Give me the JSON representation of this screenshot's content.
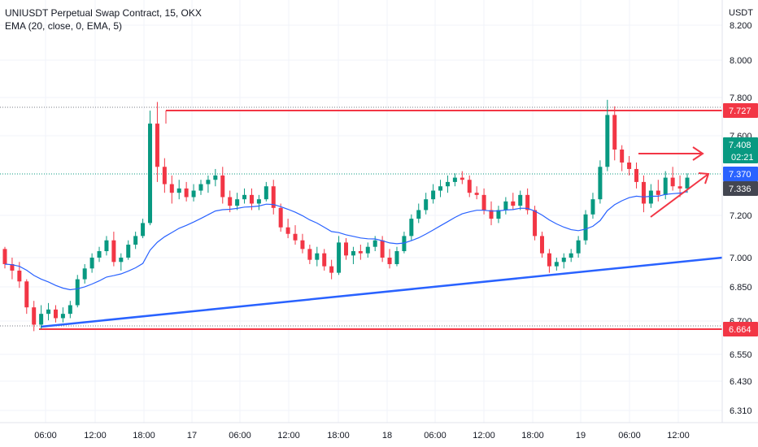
{
  "legend": {
    "symbol_line": "UNIUSDT Perpetual Swap Contract, 15, OKX",
    "indicator_line": "EMA (20, close, 0, EMA, 5)"
  },
  "axis": {
    "unit": "USDT"
  },
  "chart_data": {
    "type": "candlestick",
    "price_axis_ticks": [
      6.31,
      6.43,
      6.55,
      6.7,
      6.85,
      7.0,
      7.2,
      7.6,
      7.8,
      8.0,
      8.2
    ],
    "time_axis_ticks": [
      "06:00",
      "12:00",
      "18:00",
      "17",
      "06:00",
      "12:00",
      "18:00",
      "18",
      "06:00",
      "12:00",
      "18:00",
      "19",
      "06:00",
      "12:00"
    ],
    "price_badges": [
      {
        "label": "7.727",
        "value": 7.727,
        "color": "#f23645"
      },
      {
        "label": "7.408",
        "value": 7.408,
        "color": "#089981",
        "sub": "02:21"
      },
      {
        "label": "7.370",
        "value": 7.37,
        "color": "#2962ff"
      },
      {
        "label": "7.336",
        "value": 7.336,
        "color": "#434651"
      },
      {
        "label": "6.664",
        "value": 6.664,
        "color": "#f23645"
      }
    ],
    "horizontal_levels": [
      {
        "value": 7.727,
        "color": "#f23645"
      },
      {
        "value": 6.664,
        "color": "#f23645"
      }
    ],
    "trendline": {
      "color": "#2962ff",
      "from": {
        "bar": 4,
        "price": 6.69
      },
      "to": {
        "bar": 96,
        "price": 7.0
      }
    },
    "triangle": {
      "color": "#f23645",
      "upper": {
        "start": 7.45,
        "end": 7.45
      },
      "lower": {
        "start": 7.21,
        "end": 7.43
      }
    },
    "ema_color": "#2962ff",
    "up_color": "#089981",
    "down_color": "#f23645",
    "candles": [
      [
        7.04,
        7.05,
        6.95,
        6.97
      ],
      [
        6.97,
        7.0,
        6.9,
        6.94
      ],
      [
        6.94,
        6.98,
        6.86,
        6.89
      ],
      [
        6.89,
        6.9,
        6.74,
        6.77
      ],
      [
        6.77,
        6.8,
        6.66,
        6.69
      ],
      [
        6.69,
        6.78,
        6.67,
        6.74
      ],
      [
        6.74,
        6.79,
        6.71,
        6.76
      ],
      [
        6.76,
        6.78,
        6.7,
        6.72
      ],
      [
        6.72,
        6.77,
        6.7,
        6.74
      ],
      [
        6.74,
        6.8,
        6.72,
        6.78
      ],
      [
        6.78,
        6.92,
        6.77,
        6.9
      ],
      [
        6.9,
        6.97,
        6.88,
        6.95
      ],
      [
        6.95,
        7.02,
        6.93,
        7.0
      ],
      [
        7.0,
        7.05,
        6.98,
        7.03
      ],
      [
        7.03,
        7.1,
        7.01,
        7.08
      ],
      [
        7.08,
        7.12,
        6.96,
        6.98
      ],
      [
        6.98,
        7.02,
        6.94,
        7.0
      ],
      [
        7.0,
        7.08,
        6.99,
        7.06
      ],
      [
        7.06,
        7.12,
        7.04,
        7.1
      ],
      [
        7.1,
        7.18,
        7.09,
        7.16
      ],
      [
        7.16,
        7.68,
        7.15,
        7.62
      ],
      [
        7.62,
        7.72,
        7.35,
        7.42
      ],
      [
        7.42,
        7.46,
        7.3,
        7.34
      ],
      [
        7.34,
        7.38,
        7.25,
        7.3
      ],
      [
        7.3,
        7.36,
        7.27,
        7.32
      ],
      [
        7.32,
        7.35,
        7.26,
        7.28
      ],
      [
        7.28,
        7.34,
        7.26,
        7.31
      ],
      [
        7.31,
        7.36,
        7.29,
        7.34
      ],
      [
        7.34,
        7.38,
        7.3,
        7.36
      ],
      [
        7.36,
        7.41,
        7.33,
        7.38
      ],
      [
        7.38,
        7.42,
        7.25,
        7.28
      ],
      [
        7.28,
        7.31,
        7.21,
        7.24
      ],
      [
        7.24,
        7.3,
        7.22,
        7.27
      ],
      [
        7.27,
        7.32,
        7.25,
        7.29
      ],
      [
        7.29,
        7.32,
        7.22,
        7.25
      ],
      [
        7.25,
        7.29,
        7.22,
        7.27
      ],
      [
        7.27,
        7.35,
        7.26,
        7.33
      ],
      [
        7.33,
        7.36,
        7.2,
        7.23
      ],
      [
        7.23,
        7.25,
        7.12,
        7.14
      ],
      [
        7.14,
        7.18,
        7.09,
        7.11
      ],
      [
        7.11,
        7.15,
        7.06,
        7.08
      ],
      [
        7.08,
        7.11,
        7.02,
        7.04
      ],
      [
        7.04,
        7.06,
        6.97,
        6.99
      ],
      [
        6.99,
        7.05,
        6.96,
        7.02
      ],
      [
        7.02,
        7.04,
        6.94,
        6.96
      ],
      [
        6.96,
        6.99,
        6.9,
        6.93
      ],
      [
        6.93,
        7.1,
        6.92,
        7.07
      ],
      [
        7.07,
        7.09,
        6.99,
        7.01
      ],
      [
        7.01,
        7.05,
        6.97,
        7.03
      ],
      [
        7.03,
        7.06,
        6.99,
        7.02
      ],
      [
        7.02,
        7.07,
        7.0,
        7.05
      ],
      [
        7.05,
        7.1,
        7.03,
        7.08
      ],
      [
        7.08,
        7.1,
        6.98,
        7.0
      ],
      [
        7.0,
        7.04,
        6.95,
        6.97
      ],
      [
        6.97,
        7.05,
        6.96,
        7.03
      ],
      [
        7.03,
        7.12,
        7.02,
        7.1
      ],
      [
        7.1,
        7.2,
        7.08,
        7.18
      ],
      [
        7.18,
        7.25,
        7.16,
        7.22
      ],
      [
        7.22,
        7.3,
        7.2,
        7.27
      ],
      [
        7.27,
        7.34,
        7.25,
        7.31
      ],
      [
        7.31,
        7.36,
        7.28,
        7.33
      ],
      [
        7.33,
        7.38,
        7.3,
        7.35
      ],
      [
        7.35,
        7.39,
        7.33,
        7.37
      ],
      [
        7.37,
        7.4,
        7.34,
        7.36
      ],
      [
        7.36,
        7.38,
        7.28,
        7.3
      ],
      [
        7.3,
        7.33,
        7.27,
        7.29
      ],
      [
        7.29,
        7.32,
        7.2,
        7.22
      ],
      [
        7.22,
        7.26,
        7.15,
        7.18
      ],
      [
        7.18,
        7.24,
        7.16,
        7.22
      ],
      [
        7.22,
        7.28,
        7.2,
        7.26
      ],
      [
        7.26,
        7.3,
        7.22,
        7.24
      ],
      [
        7.24,
        7.31,
        7.22,
        7.29
      ],
      [
        7.29,
        7.32,
        7.2,
        7.22
      ],
      [
        7.22,
        7.24,
        7.08,
        7.1
      ],
      [
        7.1,
        7.12,
        7.0,
        7.02
      ],
      [
        7.02,
        7.04,
        6.93,
        6.96
      ],
      [
        6.96,
        7.0,
        6.94,
        6.98
      ],
      [
        6.98,
        7.02,
        6.95,
        7.0
      ],
      [
        7.0,
        7.04,
        6.98,
        7.02
      ],
      [
        7.02,
        7.1,
        7.0,
        7.08
      ],
      [
        7.08,
        7.22,
        7.06,
        7.2
      ],
      [
        7.2,
        7.3,
        7.18,
        7.27
      ],
      [
        7.27,
        7.45,
        7.25,
        7.42
      ],
      [
        7.42,
        7.73,
        7.4,
        7.66
      ],
      [
        7.66,
        7.7,
        7.45,
        7.5
      ],
      [
        7.5,
        7.52,
        7.4,
        7.44
      ],
      [
        7.44,
        7.47,
        7.38,
        7.41
      ],
      [
        7.41,
        7.44,
        7.32,
        7.35
      ],
      [
        7.35,
        7.38,
        7.21,
        7.25
      ],
      [
        7.25,
        7.34,
        7.23,
        7.31
      ],
      [
        7.31,
        7.36,
        7.26,
        7.29
      ],
      [
        7.29,
        7.4,
        7.27,
        7.37
      ],
      [
        7.37,
        7.42,
        7.31,
        7.33
      ],
      [
        7.33,
        7.38,
        7.28,
        7.32
      ],
      [
        7.32,
        7.39,
        7.3,
        7.37
      ]
    ]
  }
}
